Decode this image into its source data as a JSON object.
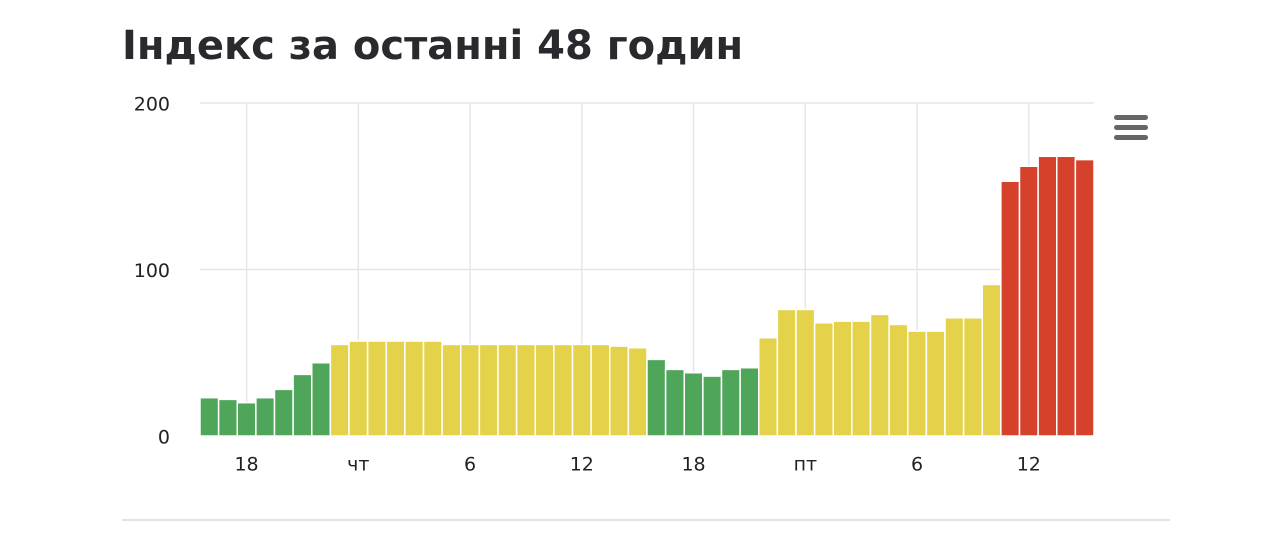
{
  "chart_data": {
    "type": "bar",
    "title": "Індекс за останні 48 годин",
    "categories": [
      null,
      null,
      "18",
      null,
      null,
      null,
      null,
      null,
      "чт",
      null,
      null,
      null,
      null,
      null,
      "6",
      null,
      null,
      null,
      null,
      null,
      "12",
      null,
      null,
      null,
      null,
      null,
      "18",
      null,
      null,
      null,
      null,
      null,
      "пт",
      null,
      null,
      null,
      null,
      null,
      "6",
      null,
      null,
      null,
      null,
      null,
      "12",
      null,
      null,
      null
    ],
    "values": [
      23,
      22,
      20,
      23,
      28,
      37,
      44,
      55,
      57,
      57,
      57,
      57,
      57,
      55,
      55,
      55,
      55,
      55,
      55,
      55,
      55,
      55,
      54,
      53,
      46,
      40,
      38,
      36,
      40,
      41,
      59,
      76,
      76,
      68,
      69,
      69,
      73,
      67,
      63,
      63,
      71,
      71,
      91,
      153,
      162,
      168,
      168,
      166
    ],
    "colors": [
      "#4fa55a",
      "#4fa55a",
      "#4fa55a",
      "#4fa55a",
      "#4fa55a",
      "#4fa55a",
      "#4fa55a",
      "#e3d24a",
      "#e3d24a",
      "#e3d24a",
      "#e3d24a",
      "#e3d24a",
      "#e3d24a",
      "#e3d24a",
      "#e3d24a",
      "#e3d24a",
      "#e3d24a",
      "#e3d24a",
      "#e3d24a",
      "#e3d24a",
      "#e3d24a",
      "#e3d24a",
      "#e3d24a",
      "#e3d24a",
      "#4fa55a",
      "#4fa55a",
      "#4fa55a",
      "#4fa55a",
      "#4fa55a",
      "#4fa55a",
      "#e3d24a",
      "#e3d24a",
      "#e3d24a",
      "#e3d24a",
      "#e3d24a",
      "#e3d24a",
      "#e3d24a",
      "#e3d24a",
      "#e3d24a",
      "#e3d24a",
      "#e3d24a",
      "#e3d24a",
      "#e3d24a",
      "#d5412a",
      "#d5412a",
      "#d5412a",
      "#d5412a",
      "#d5412a"
    ],
    "ylim": [
      0,
      200
    ],
    "yticks": [
      0,
      100,
      200
    ],
    "grid": true
  }
}
